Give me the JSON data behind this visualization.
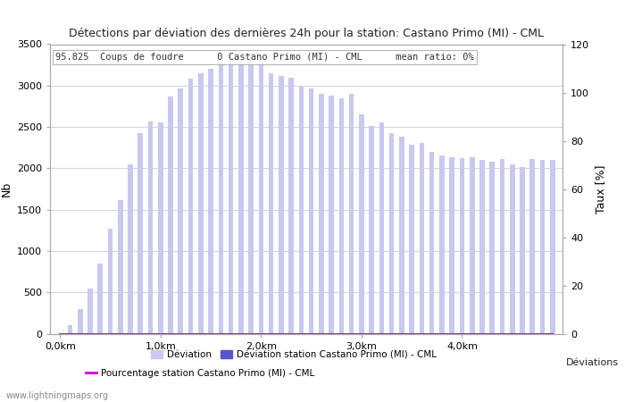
{
  "title": "Détections par déviation des dernières 24h pour la station: Castano Primo (MI) - CML",
  "subtitle": "95.825  Coups de foudre      0 Castano Primo (MI) - CML      mean ratio: 0%",
  "ylabel_left": "Nb",
  "ylabel_right": "Taux [%]",
  "xlabel_right": "Déviations",
  "ylim_left": [
    0,
    3500
  ],
  "ylim_right": [
    0,
    120
  ],
  "xtick_positions": [
    0,
    10,
    20,
    30,
    40
  ],
  "xtick_labels": [
    "0,0km",
    "1,0km",
    "2,0km",
    "3,0km",
    "4,0km"
  ],
  "ytick_left": [
    0,
    500,
    1000,
    1500,
    2000,
    2500,
    3000,
    3500
  ],
  "ytick_right": [
    0,
    20,
    40,
    60,
    80,
    100,
    120
  ],
  "bar_color_global": "#c8c8f0",
  "bar_color_station": "#5555cc",
  "line_color": "#dd00dd",
  "watermark": "www.lightningmaps.org",
  "legend_deviation": "Déviation",
  "legend_station": "Déviation station Castano Primo (MI) - CML",
  "legend_percentage": "Pourcentage station Castano Primo (MI) - CML",
  "global_bars": [
    0,
    100,
    300,
    550,
    850,
    1270,
    1620,
    2050,
    2430,
    2570,
    2560,
    2870,
    2960,
    3080,
    3150,
    3200,
    3280,
    3270,
    3300,
    3320,
    3280,
    3150,
    3120,
    3100,
    2990,
    2960,
    2900,
    2880,
    2850,
    2900,
    2650,
    2510,
    2560,
    2430,
    2380,
    2280,
    2310,
    2200,
    2150,
    2130,
    2120,
    2130,
    2100,
    2080,
    2110,
    2050,
    2020,
    2110,
    2100,
    2100
  ],
  "station_bars": [
    0,
    0,
    0,
    0,
    0,
    0,
    0,
    0,
    0,
    0,
    0,
    0,
    0,
    0,
    0,
    0,
    0,
    0,
    0,
    0,
    0,
    0,
    0,
    0,
    0,
    0,
    0,
    0,
    0,
    0,
    0,
    0,
    0,
    0,
    0,
    0,
    0,
    0,
    0,
    0,
    0,
    0,
    0,
    0,
    0,
    0,
    0,
    0,
    0,
    0
  ],
  "percentage_line": [
    0,
    0,
    0,
    0,
    0,
    0,
    0,
    0,
    0,
    0,
    0,
    0,
    0,
    0,
    0,
    0,
    0,
    0,
    0,
    0,
    0,
    0,
    0,
    0,
    0,
    0,
    0,
    0,
    0,
    0,
    0,
    0,
    0,
    0,
    0,
    0,
    0,
    0,
    0,
    0,
    0,
    0,
    0,
    0,
    0,
    0,
    0,
    0,
    0,
    0
  ]
}
